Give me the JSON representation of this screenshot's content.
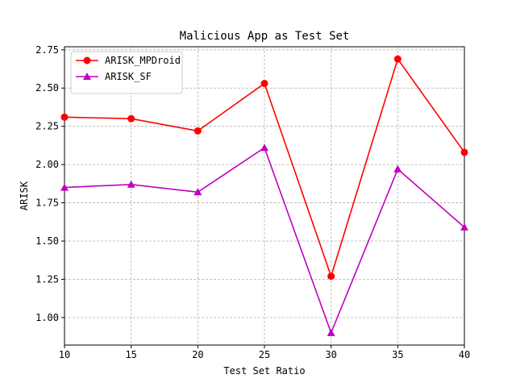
{
  "chart_data": {
    "type": "line",
    "title": "Malicious App as Test Set",
    "xlabel": "Test Set Ratio",
    "ylabel": "ARISK",
    "x": [
      10,
      15,
      20,
      25,
      30,
      35,
      40
    ],
    "xticks": [
      "10",
      "15",
      "20",
      "25",
      "30",
      "35",
      "40"
    ],
    "yticks": [
      "1.00",
      "1.25",
      "1.50",
      "1.75",
      "2.00",
      "2.25",
      "2.50",
      "2.75"
    ],
    "xlim": [
      10,
      40
    ],
    "ylim": [
      0.82,
      2.77
    ],
    "grid": true,
    "legend_position": "top-left",
    "series": [
      {
        "name": "ARISK_MPDroid",
        "color": "#ff0000",
        "marker": "circle",
        "values": [
          2.31,
          2.3,
          2.22,
          2.53,
          1.27,
          2.69,
          2.08
        ]
      },
      {
        "name": "ARISK_SF",
        "color": "#bf00bf",
        "marker": "triangle",
        "values": [
          1.85,
          1.87,
          1.82,
          2.11,
          0.9,
          1.97,
          1.59
        ]
      }
    ]
  }
}
